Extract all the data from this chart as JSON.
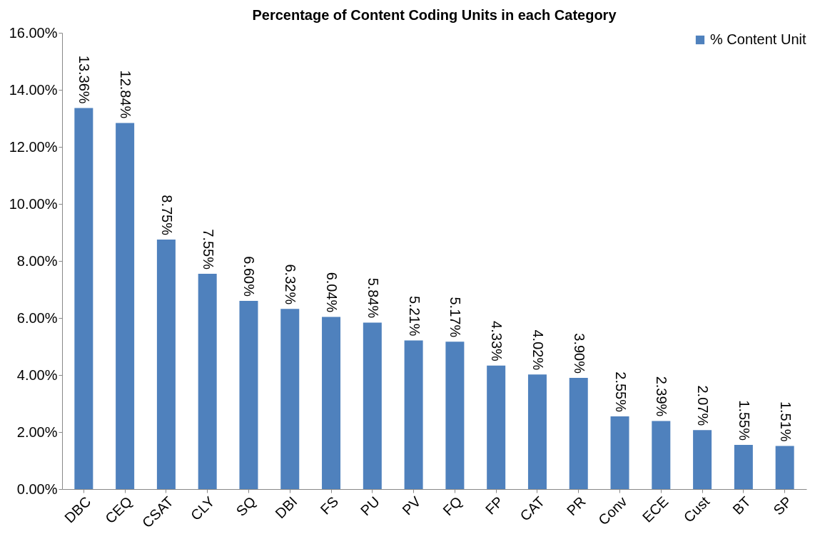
{
  "chart_data": {
    "type": "bar",
    "title": "Percentage of Content Coding Units in each Category",
    "categories": [
      "DBC",
      "CEQ",
      "CSAT",
      "CLY",
      "SQ",
      "DBI",
      "FS",
      "PU",
      "PV",
      "FQ",
      "FP",
      "CAT",
      "PR",
      "Conv",
      "ECE",
      "Cust",
      "BT",
      "SP"
    ],
    "series": [
      {
        "name": "% Content Unit",
        "color": "#4f81bd",
        "values": [
          13.36,
          12.84,
          8.75,
          7.55,
          6.6,
          6.32,
          6.04,
          5.84,
          5.21,
          5.17,
          4.33,
          4.02,
          3.9,
          2.55,
          2.39,
          2.07,
          1.55,
          1.51
        ],
        "value_labels": [
          "13.36%",
          "12.84%",
          "8.75%",
          "7.55%",
          "6.60%",
          "6.32%",
          "6.04%",
          "5.84%",
          "5.21%",
          "5.17%",
          "4.33%",
          "4.02%",
          "3.90%",
          "2.55%",
          "2.39%",
          "2.07%",
          "1.55%",
          "1.51%"
        ]
      }
    ],
    "ylim": [
      0,
      16
    ],
    "yticks": [
      {
        "value": 0,
        "label": "0.00%"
      },
      {
        "value": 2,
        "label": "2.00%"
      },
      {
        "value": 4,
        "label": "4.00%"
      },
      {
        "value": 6,
        "label": "6.00%"
      },
      {
        "value": 8,
        "label": "8.00%"
      },
      {
        "value": 10,
        "label": "10.00%"
      },
      {
        "value": 12,
        "label": "12.00%"
      },
      {
        "value": 14,
        "label": "14.00%"
      },
      {
        "value": 16,
        "label": "16.00%"
      }
    ],
    "grid": false,
    "legend": "top right"
  }
}
